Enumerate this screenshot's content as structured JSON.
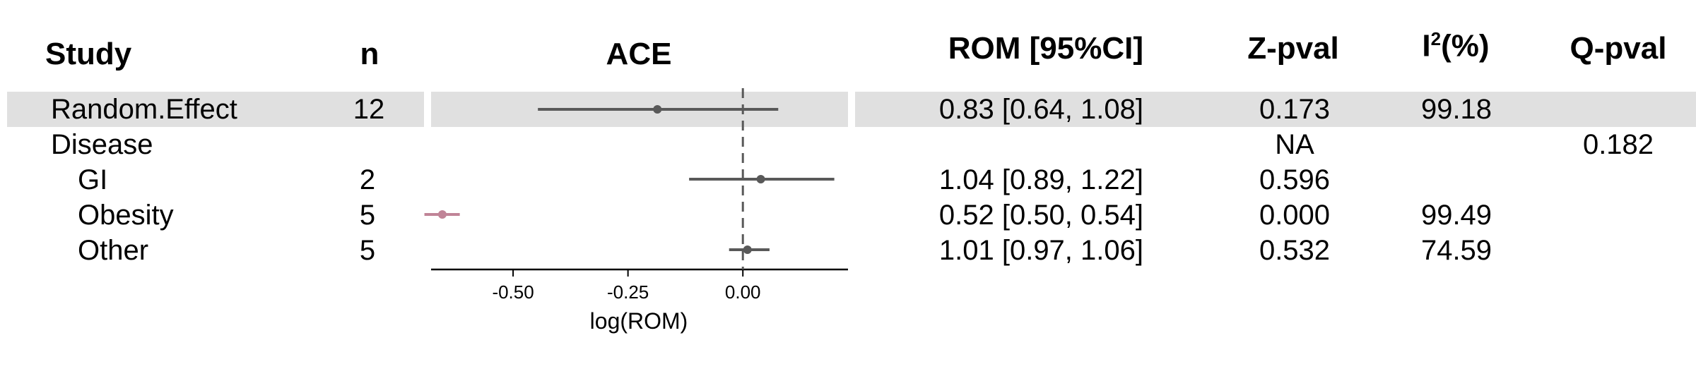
{
  "headers": {
    "study": "Study",
    "n": "n",
    "plot_title": "ACE",
    "rom": "ROM [95%CI]",
    "z_pval": "Z-pval",
    "i2_base": "I",
    "i2_sup": "2",
    "i2_unit": "(%)",
    "q_pval": "Q-pval"
  },
  "rows": [
    {
      "study": "Random.Effect",
      "n": "12",
      "rom": "0.83 [0.64, 1.08]",
      "z_pval": "0.173",
      "i2": "99.18",
      "q_pval": "",
      "highlight": true
    },
    {
      "study": "Disease",
      "n": "",
      "rom": "",
      "z_pval": "NA",
      "i2": "",
      "q_pval": "0.182",
      "highlight": false
    },
    {
      "study": "GI",
      "n": "2",
      "rom": "1.04 [0.89, 1.22]",
      "z_pval": "0.596",
      "i2": "",
      "q_pval": "",
      "highlight": false
    },
    {
      "study": "Obesity",
      "n": "5",
      "rom": "0.52 [0.50, 0.54]",
      "z_pval": "0.000",
      "i2": "99.49",
      "q_pval": "",
      "highlight": false
    },
    {
      "study": "Other",
      "n": "5",
      "rom": "1.01 [0.97, 1.06]",
      "z_pval": "0.532",
      "i2": "74.59",
      "q_pval": "",
      "highlight": false
    }
  ],
  "chart_data": {
    "type": "scatter",
    "title": "ACE",
    "xlabel": "log(ROM)",
    "xlim": [
      -0.6785,
      0.2288
    ],
    "xticks": [
      "-0.50",
      "-0.25",
      "0.00"
    ],
    "xtick_values": [
      -0.5,
      -0.25,
      0.0
    ],
    "reference_line": 0.0,
    "grid": false,
    "series": [
      {
        "points": [
          {
            "label": "Random.Effect",
            "estimate": -0.186,
            "lower": -0.446,
            "upper": 0.077,
            "color": "#595959"
          },
          {
            "label": "GI",
            "estimate": 0.039,
            "lower": -0.117,
            "upper": 0.199,
            "color": "#595959"
          },
          {
            "label": "Obesity",
            "estimate": -0.654,
            "lower": -0.693,
            "upper": -0.616,
            "color": "#c08497"
          },
          {
            "label": "Other",
            "estimate": 0.01,
            "lower": -0.03,
            "upper": 0.058,
            "color": "#595959"
          }
        ]
      }
    ]
  }
}
